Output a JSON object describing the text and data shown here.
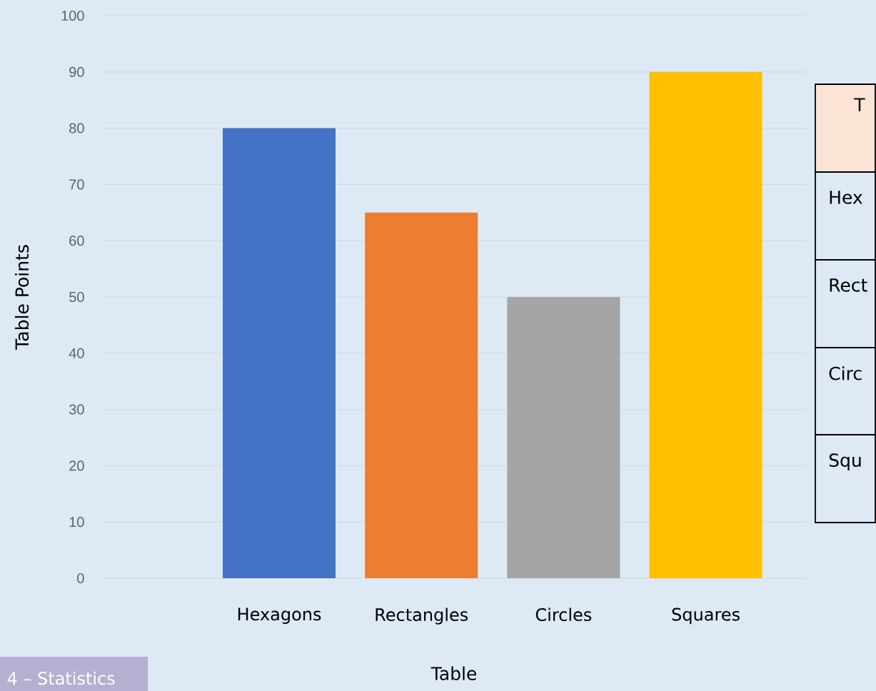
{
  "chart_data": {
    "type": "bar",
    "xlabel": "Table",
    "ylabel": "Table Points",
    "categories": [
      "Hexagons",
      "Rectangles",
      "Circles",
      "Squares"
    ],
    "values": [
      80,
      65,
      50,
      90
    ],
    "colors": [
      "#4472c4",
      "#ed7d31",
      "#a5a5a5",
      "#ffc000"
    ],
    "ylim": [
      0,
      100
    ],
    "yticks": [
      0,
      10,
      20,
      30,
      40,
      50,
      60,
      70,
      80,
      90,
      100
    ],
    "grid": "y",
    "annotations": [
      "4 – Statistics",
      "T",
      "Hex",
      "Rect",
      "Circ",
      "Squ"
    ]
  }
}
